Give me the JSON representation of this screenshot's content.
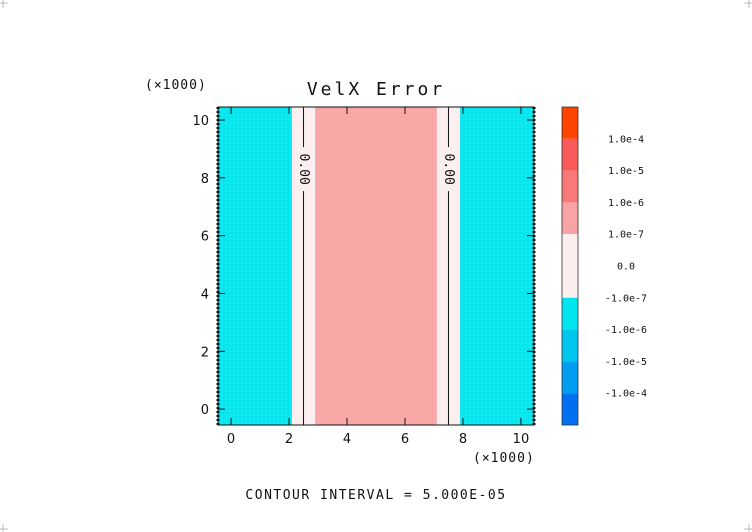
{
  "chart_data": {
    "type": "heatmap",
    "title": "VelX Error",
    "x_multiplier_label": "(×1000)",
    "y_multiplier_label": "(×1000)",
    "xlim": [
      -0.45,
      10.45
    ],
    "ylim": [
      -0.55,
      10.45
    ],
    "x_ticks": [
      0,
      2,
      4,
      6,
      8,
      10
    ],
    "y_ticks": [
      0,
      2,
      4,
      6,
      8,
      10
    ],
    "x_tick_labels": [
      "0",
      "2",
      "4",
      "6",
      "8",
      "10"
    ],
    "y_tick_labels": [
      "0",
      "2",
      "4",
      "6",
      "8",
      "10"
    ],
    "bands": [
      {
        "x0": -0.45,
        "x1": 2.1,
        "level": -1,
        "color": "#00e5ee"
      },
      {
        "x0": 2.1,
        "x1": 2.9,
        "level": 0,
        "color": "#fbeeee"
      },
      {
        "x0": 2.9,
        "x1": 7.1,
        "level": 2,
        "color": "#f9a4a4"
      },
      {
        "x0": 7.1,
        "x1": 7.9,
        "level": 0,
        "color": "#fbeeee"
      },
      {
        "x0": 7.9,
        "x1": 10.45,
        "level": -1,
        "color": "#00e5ee"
      }
    ],
    "contours": [
      {
        "x": 2.5,
        "label": "0.00"
      },
      {
        "x": 7.5,
        "label": "0.00"
      }
    ],
    "colorbar": {
      "levels": [
        {
          "label": "",
          "color": "#ff4400"
        },
        {
          "label": "1.0e-4",
          "color": "#f85a5a"
        },
        {
          "label": "1.0e-5",
          "color": "#f97878"
        },
        {
          "label": "1.0e-6",
          "color": "#f9a4a4"
        },
        {
          "label": "1.0e-7",
          "color": "#fbeeee"
        },
        {
          "label": "0.0",
          "color": "#fbeeee"
        },
        {
          "label": "-1.0e-7",
          "color": "#00e5ee"
        },
        {
          "label": "-1.0e-6",
          "color": "#00c6f0"
        },
        {
          "label": "-1.0e-5",
          "color": "#009ef2"
        },
        {
          "label": "-1.0e-4",
          "color": "#0070f0"
        }
      ]
    },
    "footer": "CONTOUR INTERVAL = 5.000E-05"
  }
}
